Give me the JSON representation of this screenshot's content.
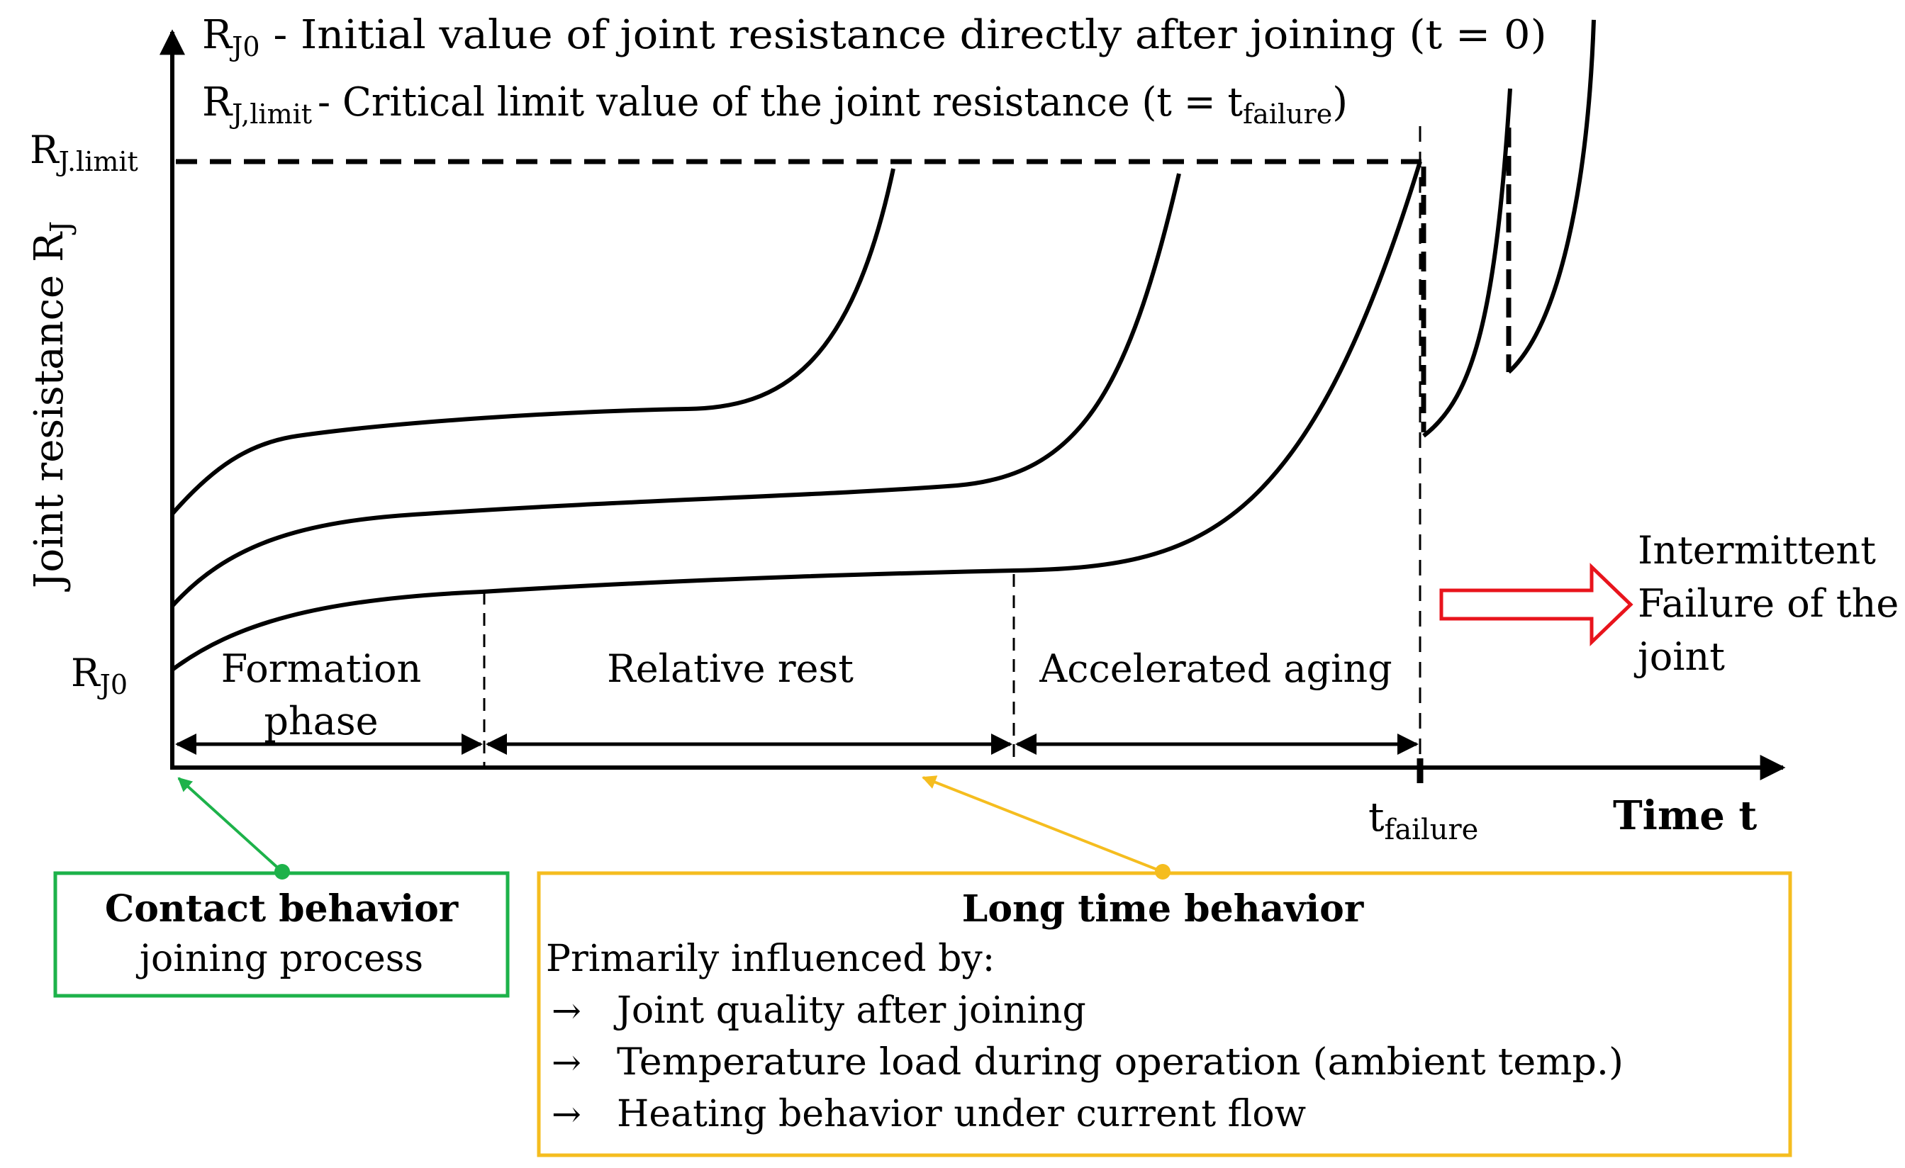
{
  "legend": {
    "rj0_symbol_main": "R",
    "rj0_symbol_sub": "J0",
    "rj0_desc": " - Initial value of joint resistance directly after joining (t = 0)",
    "rjlimit_symbol_main": "R",
    "rjlimit_symbol_sub": "J,limit",
    "rjlimit_desc_pre": "- Critical limit value of the joint resistance (t = t",
    "rjlimit_desc_sub": "failure",
    "rjlimit_desc_post": ")"
  },
  "y_axis": {
    "label_main": "Joint resistance R",
    "label_sub": "J",
    "limit_tick_main": "R",
    "limit_tick_sub": "J.limit",
    "origin_tick_main": "R",
    "origin_tick_sub": "J0"
  },
  "x_axis": {
    "label": "Time t",
    "failure_tick_main": "t",
    "failure_tick_sub": "failure"
  },
  "phases": {
    "formation_line1": "Formation",
    "formation_line2": "phase",
    "relative_rest": "Relative rest",
    "accelerated_aging": "Accelerated aging"
  },
  "failure_note": {
    "line1": "Intermittent",
    "line2": "Failure of the",
    "line3": "joint"
  },
  "contact_box": {
    "title": "Contact behavior",
    "subtitle": "joining process"
  },
  "longtime_box": {
    "title": "Long time behavior",
    "intro": "Primarily influenced by:",
    "arrow": "→",
    "items": [
      "Joint quality after joining",
      "Temperature load during operation (ambient temp.)",
      "Heating behavior under current flow"
    ]
  },
  "colors": {
    "contact_box": "#1db24a",
    "longtime_box": "#f5bd1f",
    "failure_arrow": "#e8141c",
    "ink": "#000000"
  }
}
